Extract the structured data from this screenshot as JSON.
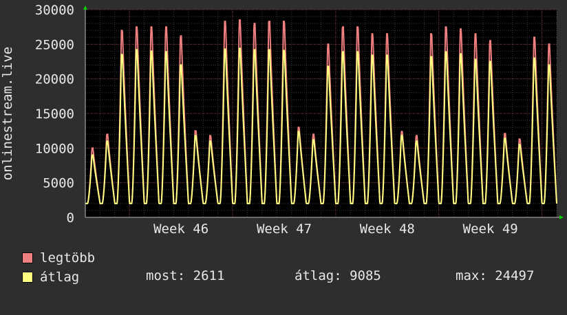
{
  "chart_data": {
    "type": "line",
    "ylabel": "onlinestream.live",
    "ylim": [
      0,
      30000
    ],
    "yticks": [
      0,
      5000,
      10000,
      15000,
      20000,
      25000,
      30000
    ],
    "xlabels": [
      "Week 46",
      "Week 47",
      "Week 48",
      "Week 49"
    ],
    "grid": true,
    "legend_placement": "bottom",
    "days": 32,
    "daily_peaks": {
      "legtobb": [
        10000,
        12000,
        27000,
        27500,
        27500,
        27500,
        26200,
        12500,
        11800,
        28300,
        28500,
        28000,
        28300,
        28300,
        13000,
        12000,
        25000,
        27500,
        27500,
        26500,
        26500,
        12400,
        11800,
        26500,
        27500,
        27200,
        26500,
        25500,
        12100,
        11300,
        26000,
        25000
      ],
      "atlag": [
        9000,
        11000,
        23500,
        24200,
        24000,
        23900,
        22000,
        11800,
        11000,
        24300,
        24400,
        24200,
        24200,
        24100,
        12400,
        11200,
        21800,
        23900,
        23900,
        23400,
        23400,
        11800,
        11000,
        23200,
        23900,
        23600,
        22800,
        22500,
        11400,
        10500,
        23000,
        22000
      ]
    },
    "daily_min": 2000,
    "series": [
      {
        "name": "legtöbb",
        "color": "#f08080"
      },
      {
        "name": "átlag",
        "color": "#ffff80"
      }
    ]
  },
  "legend": {
    "items": [
      {
        "label": "legtöbb",
        "color": "#f08080"
      },
      {
        "label": "átlag",
        "color": "#ffff80"
      }
    ],
    "stats": {
      "most": "most: 2611",
      "atlag": "átlag: 9085",
      "max": "max: 24497"
    }
  }
}
